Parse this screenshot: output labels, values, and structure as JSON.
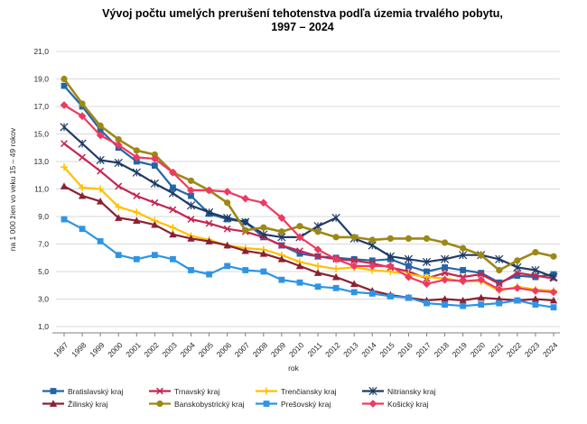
{
  "title": {
    "line1": "Vývoj počtu umelých prerušení tehotenstva podľa územia trvalého pobytu,",
    "line2": "1997 – 2024"
  },
  "chart_data": {
    "type": "line",
    "x": [
      1997,
      1998,
      1999,
      2000,
      2001,
      2002,
      2003,
      2004,
      2005,
      2006,
      2007,
      2008,
      2009,
      2010,
      2011,
      2012,
      2013,
      2014,
      2015,
      2016,
      2017,
      2018,
      2019,
      2020,
      2021,
      2022,
      2023,
      2024
    ],
    "xlabel": "rok",
    "ylabel": "na 1 000 žien vo veku 15 – 49 rokov",
    "ylim": [
      1.0,
      21.0
    ],
    "ytick_step": 2.0,
    "grid": true,
    "legend_position": "bottom",
    "grid_color": "#D9D9D9",
    "axis_color": "#808080",
    "tick_text_color": "#262626",
    "series": [
      {
        "name": "Bratislavský kraj",
        "color": "#2366A8",
        "marker": "square",
        "values": [
          18.5,
          17.0,
          15.3,
          14.0,
          13.0,
          12.7,
          11.1,
          10.5,
          9.2,
          8.8,
          8.6,
          7.5,
          6.9,
          6.3,
          6.1,
          6.0,
          5.9,
          5.8,
          5.9,
          5.4,
          5.0,
          5.3,
          5.1,
          4.9,
          4.2,
          4.7,
          4.6,
          4.8
        ]
      },
      {
        "name": "Trnavský kraj",
        "color": "#C32651",
        "marker": "x",
        "values": [
          14.3,
          13.3,
          12.3,
          11.2,
          10.5,
          10.0,
          9.5,
          8.8,
          8.5,
          8.1,
          7.9,
          7.5,
          6.9,
          6.5,
          6.1,
          5.9,
          5.8,
          5.6,
          5.3,
          5.0,
          4.5,
          4.9,
          4.6,
          4.8,
          4.1,
          4.9,
          4.7,
          4.5
        ]
      },
      {
        "name": "Trenčiansky kraj",
        "color": "#FFC000",
        "marker": "plus",
        "values": [
          12.6,
          11.1,
          11.0,
          9.7,
          9.3,
          8.7,
          8.2,
          7.6,
          7.3,
          6.9,
          6.7,
          6.6,
          6.2,
          5.7,
          5.4,
          5.2,
          5.3,
          5.1,
          5.0,
          4.8,
          4.6,
          4.5,
          4.3,
          4.3,
          3.6,
          3.9,
          3.7,
          3.6
        ]
      },
      {
        "name": "Nitriansky kraj",
        "color": "#1F3B66",
        "marker": "asterisk",
        "values": [
          15.5,
          14.3,
          13.1,
          12.9,
          12.2,
          11.4,
          10.7,
          9.8,
          9.3,
          8.9,
          8.6,
          7.7,
          7.5,
          7.5,
          8.3,
          8.9,
          7.4,
          6.9,
          6.1,
          5.9,
          5.7,
          5.9,
          6.2,
          6.2,
          5.9,
          5.3,
          5.1,
          4.6
        ]
      },
      {
        "name": "Žilinský kraj",
        "color": "#8A2132",
        "marker": "triangle",
        "values": [
          11.2,
          10.5,
          10.1,
          8.9,
          8.7,
          8.4,
          7.7,
          7.4,
          7.2,
          6.9,
          6.5,
          6.3,
          5.9,
          5.4,
          4.9,
          4.6,
          4.1,
          3.6,
          3.3,
          3.1,
          2.9,
          3.0,
          2.9,
          3.1,
          3.0,
          2.9,
          3.0,
          2.9
        ]
      },
      {
        "name": "Banskobystrický kraj",
        "color": "#9E8815",
        "marker": "circle",
        "values": [
          19.0,
          17.2,
          15.6,
          14.6,
          13.8,
          13.5,
          12.2,
          11.6,
          10.9,
          10.0,
          8.0,
          8.2,
          7.9,
          8.3,
          7.9,
          7.5,
          7.5,
          7.3,
          7.4,
          7.4,
          7.4,
          7.1,
          6.7,
          6.2,
          5.1,
          5.8,
          6.4,
          6.1
        ]
      },
      {
        "name": "Prešovský kraj",
        "color": "#2D95E5",
        "marker": "square",
        "values": [
          8.8,
          8.1,
          7.2,
          6.2,
          5.9,
          6.2,
          5.9,
          5.1,
          4.8,
          5.4,
          5.1,
          5.0,
          4.4,
          4.2,
          3.9,
          3.8,
          3.5,
          3.4,
          3.2,
          3.1,
          2.7,
          2.6,
          2.5,
          2.6,
          2.7,
          2.9,
          2.6,
          2.4
        ]
      },
      {
        "name": "Košický kraj",
        "color": "#EE3A60",
        "marker": "diamond",
        "values": [
          17.1,
          16.3,
          14.9,
          14.2,
          13.3,
          13.2,
          12.2,
          10.9,
          10.9,
          10.8,
          10.3,
          10.0,
          8.9,
          7.5,
          6.6,
          5.9,
          5.4,
          5.4,
          5.4,
          4.6,
          4.1,
          4.4,
          4.3,
          4.4,
          3.7,
          3.8,
          3.6,
          3.5
        ]
      }
    ]
  }
}
